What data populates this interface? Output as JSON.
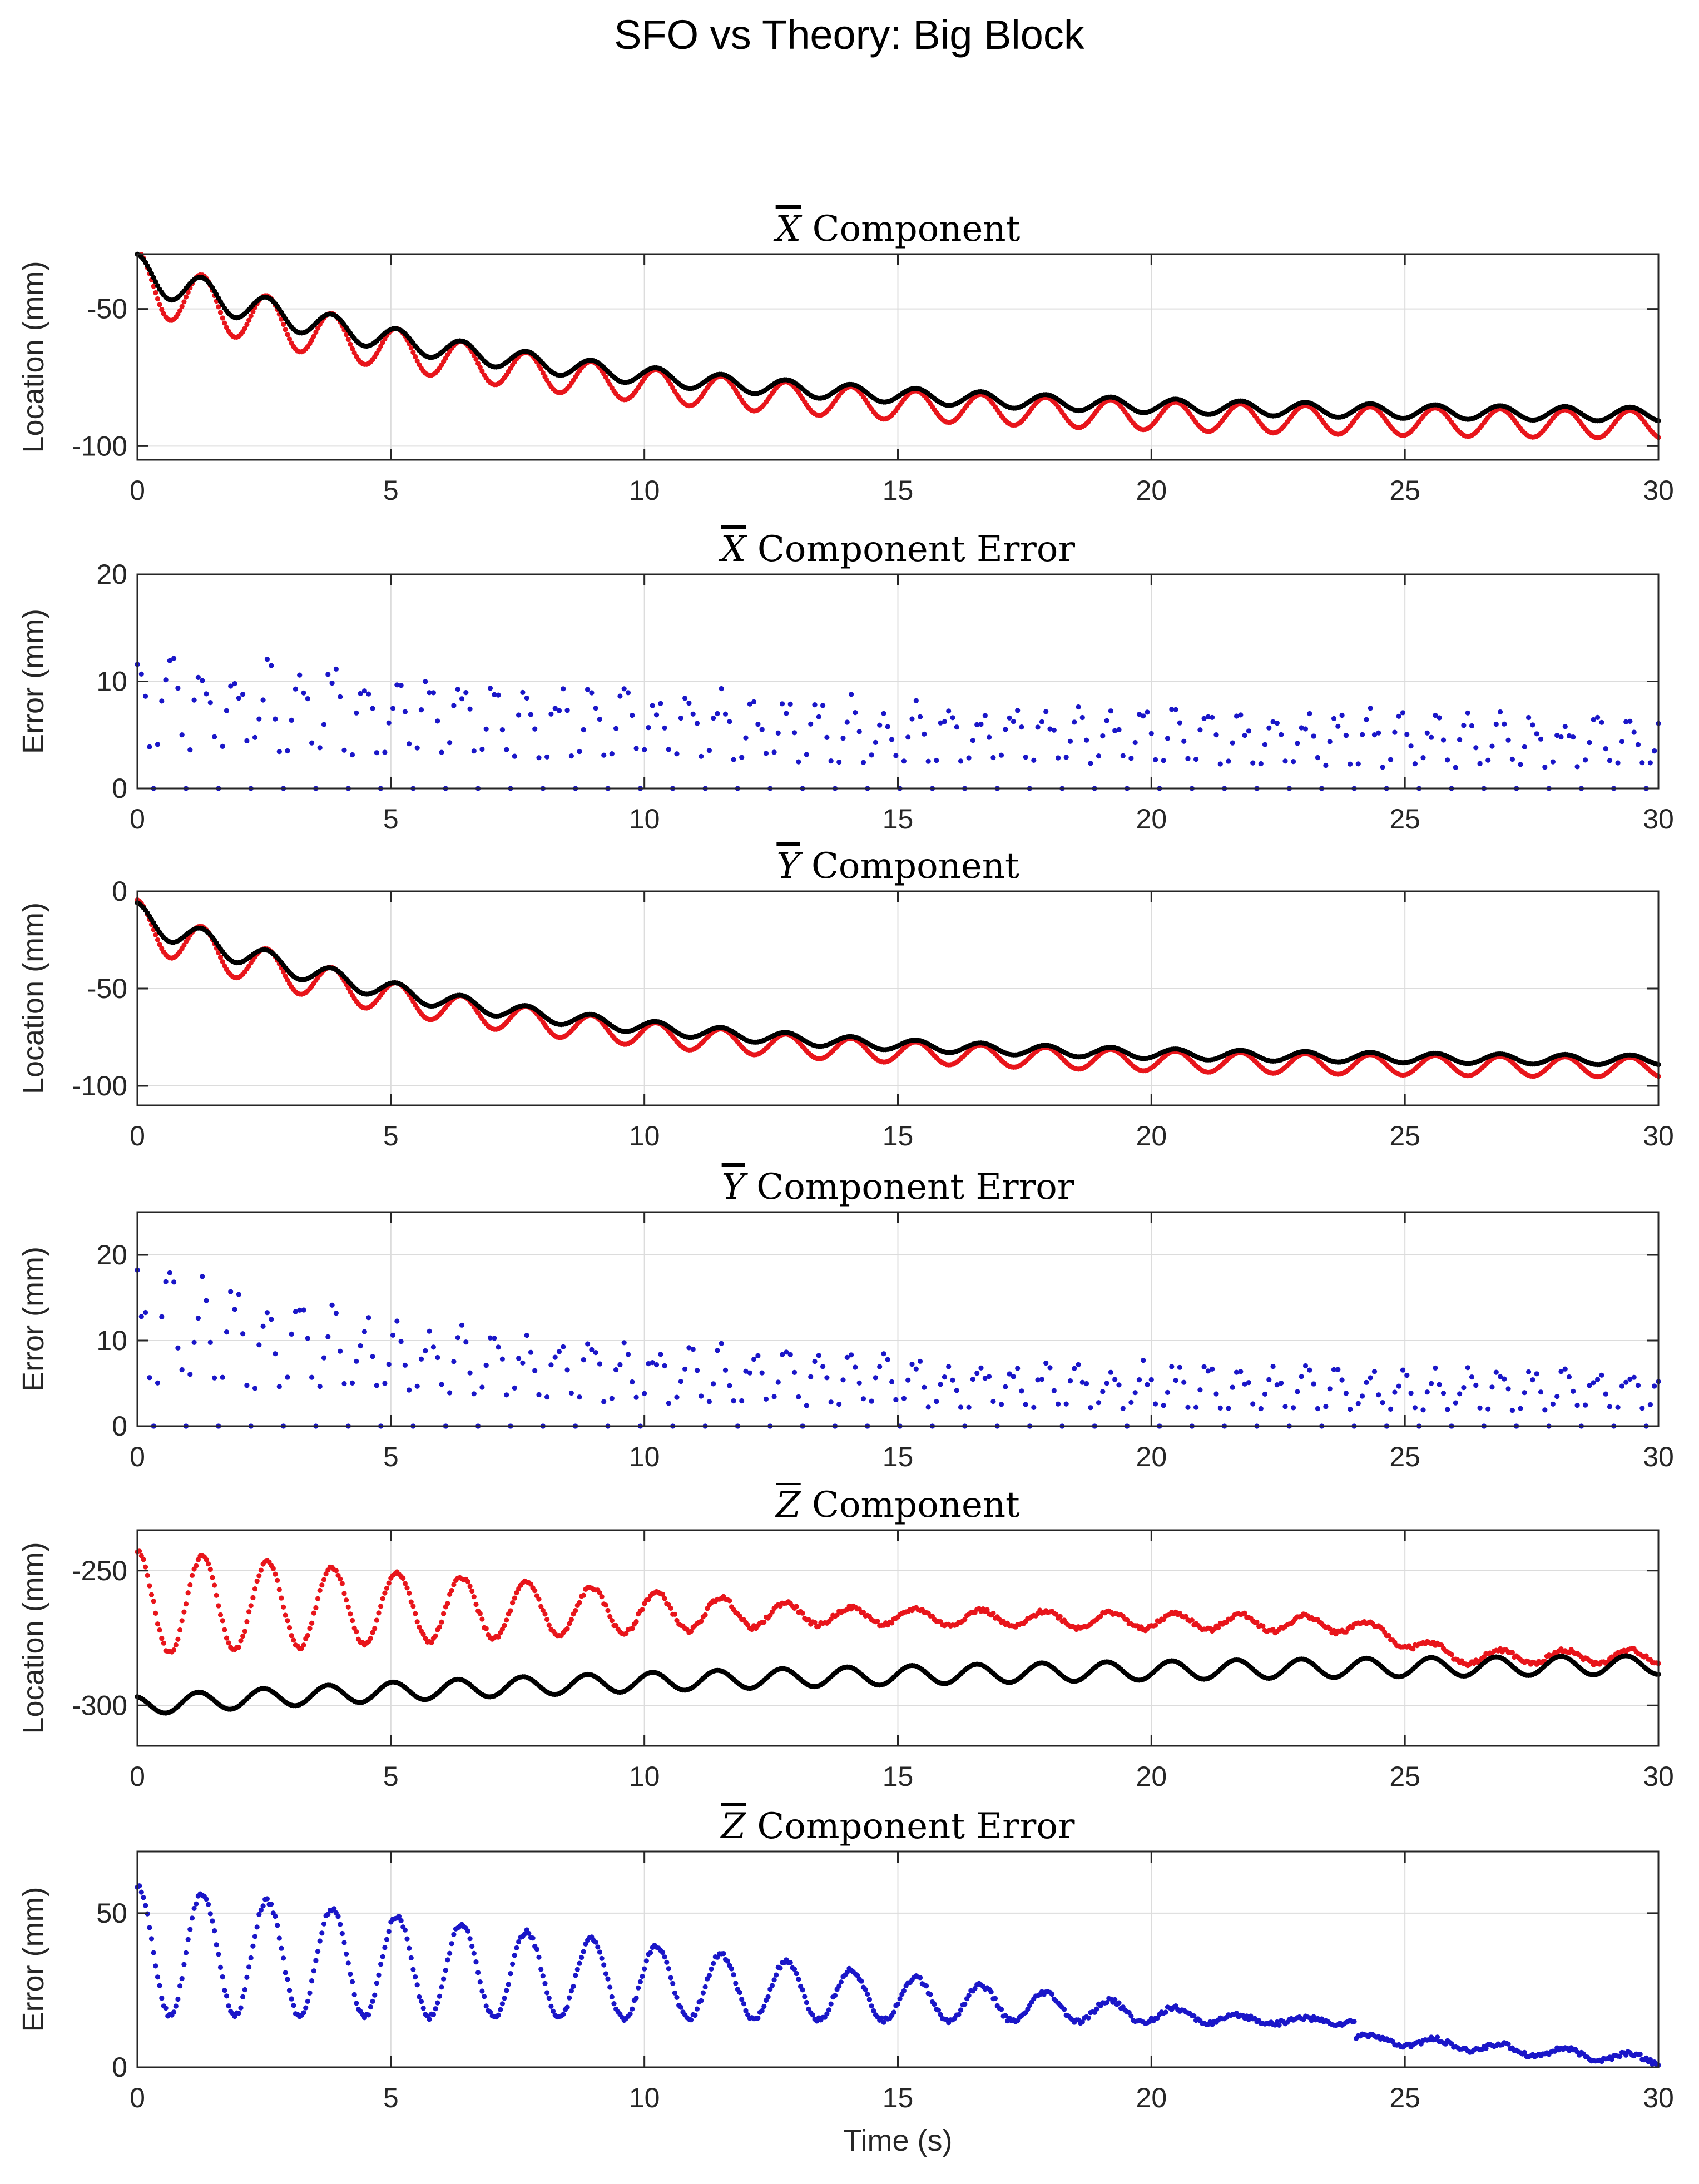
{
  "figure_title": "SFO vs Theory: Big Block",
  "colors": {
    "sfo": "#e8151b",
    "theory": "#000000",
    "error": "#1a16c8"
  },
  "chart_data": [
    {
      "type": "scatter",
      "title": "X̄ Component",
      "title_letter": "X",
      "title_rest": "Component",
      "xlabel": "",
      "ylabel": "Location (mm)",
      "xlim": [
        0,
        30
      ],
      "ylim": [
        -105,
        -30
      ],
      "xticks": [
        0,
        5,
        10,
        15,
        20,
        25,
        30
      ],
      "yticks": [
        -100,
        -50
      ],
      "grid": true,
      "series": [
        {
          "name": "SFO",
          "model": {
            "kind": "decay_osc",
            "start": -32,
            "end": -90,
            "tau": 8,
            "amp0": 22,
            "amp1": 10,
            "period": 1.28,
            "dt": 0.04
          }
        },
        {
          "name": "Theory",
          "model": {
            "kind": "decay_osc",
            "start": -32,
            "end": -88,
            "tau": 8,
            "amp0": 13,
            "amp1": 5,
            "period": 1.28,
            "dt": 0.04
          }
        }
      ]
    },
    {
      "type": "scatter",
      "title": "X̄ Component Error",
      "title_letter": "X",
      "title_rest": "Component Error",
      "xlabel": "",
      "ylabel": "Error (mm)",
      "xlim": [
        0,
        30
      ],
      "ylim": [
        0,
        20
      ],
      "xticks": [
        0,
        5,
        10,
        15,
        20,
        25,
        30
      ],
      "yticks": [
        0,
        10,
        20
      ],
      "grid": true,
      "series": [
        {
          "name": "Error",
          "model": {
            "kind": "error_osc",
            "base0": 13,
            "base1": 6,
            "tau": 12,
            "period": 0.64,
            "dt": 0.08
          }
        }
      ]
    },
    {
      "type": "scatter",
      "title": "Ȳ Component",
      "title_letter": "Y",
      "title_rest": "Component",
      "xlabel": "",
      "ylabel": "Location (mm)",
      "xlim": [
        0,
        30
      ],
      "ylim": [
        -110,
        0
      ],
      "xticks": [
        0,
        5,
        10,
        15,
        20,
        25,
        30
      ],
      "yticks": [
        -100,
        -50,
        0
      ],
      "grid": true,
      "series": [
        {
          "name": "SFO",
          "model": {
            "kind": "decay_osc",
            "start": -8,
            "end": -88,
            "tau": 7,
            "amp0": 24,
            "amp1": 10,
            "period": 1.28,
            "dt": 0.04
          }
        },
        {
          "name": "Theory",
          "model": {
            "kind": "decay_osc",
            "start": -8,
            "end": -86,
            "tau": 7,
            "amp0": 14,
            "amp1": 5,
            "period": 1.28,
            "dt": 0.04
          }
        }
      ]
    },
    {
      "type": "scatter",
      "title": "Ȳ Component Error",
      "title_letter": "Y",
      "title_rest": "Component Error",
      "xlabel": "",
      "ylabel": "Error (mm)",
      "xlim": [
        0,
        30
      ],
      "ylim": [
        0,
        25
      ],
      "xticks": [
        0,
        5,
        10,
        15,
        20,
        25,
        30
      ],
      "yticks": [
        0,
        10,
        20
      ],
      "grid": true,
      "series": [
        {
          "name": "Error",
          "model": {
            "kind": "error_osc",
            "base0": 18,
            "base1": 6,
            "tau": 8,
            "period": 0.64,
            "dt": 0.08
          }
        }
      ]
    },
    {
      "type": "scatter",
      "title": "Z̄ Component",
      "title_letter": "Z",
      "title_rest": "Component",
      "xlabel": "",
      "ylabel": "Location (mm)",
      "xlim": [
        0,
        30
      ],
      "ylim": [
        -315,
        -235
      ],
      "xticks": [
        0,
        5,
        10,
        15,
        20,
        25,
        30
      ],
      "yticks": [
        -300,
        -250
      ],
      "grid": true,
      "series": [
        {
          "name": "SFO",
          "model": {
            "kind": "z_sfo",
            "dt": 0.04,
            "period": 1.28
          }
        },
        {
          "name": "Theory",
          "model": {
            "kind": "z_theory",
            "dt": 0.04,
            "period": 1.28
          }
        }
      ]
    },
    {
      "type": "scatter",
      "title": "Z̄ Component Error",
      "title_letter": "Z",
      "title_rest": "Component Error",
      "xlabel": "Time (s)",
      "ylabel": "Error (mm)",
      "xlim": [
        0,
        30
      ],
      "ylim": [
        0,
        70
      ],
      "xticks": [
        0,
        5,
        10,
        15,
        20,
        25,
        30
      ],
      "yticks": [
        0,
        50
      ],
      "grid": true,
      "series": [
        {
          "name": "Error",
          "model": {
            "kind": "z_error",
            "dt": 0.04,
            "period": 1.28
          }
        }
      ]
    }
  ]
}
